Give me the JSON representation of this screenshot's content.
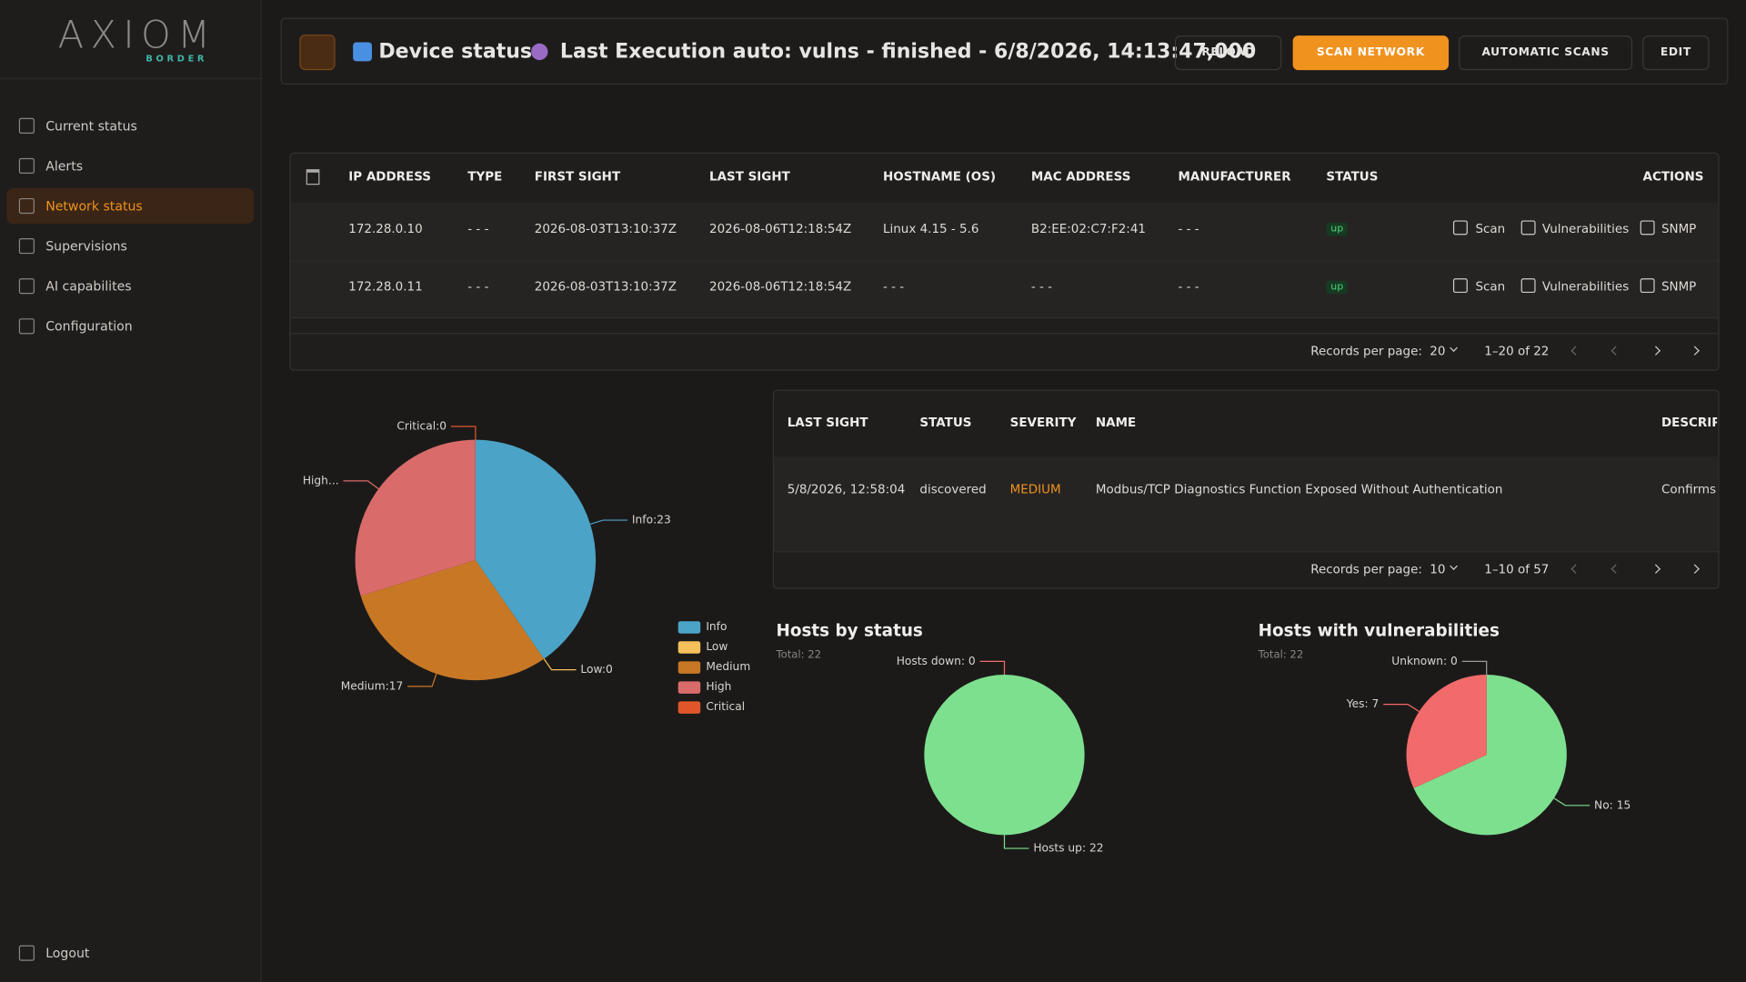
{
  "sidebar": {
    "logo": "AXIOM",
    "logo_sub": "BORDER",
    "menu": [
      "Current status",
      "Alerts",
      "Network status",
      "Supervisions",
      "AI capabilites",
      "Configuration"
    ],
    "logout": "Logout"
  },
  "header": {
    "title": "Device status -",
    "execution": "Last Execution auto: vulns - finished - 6/8/2026, 14:13:47,000",
    "buttons": [
      "RELOAD",
      "SCAN NETWORK",
      "AUTOMATIC SCANS",
      "EDIT"
    ]
  },
  "devices_table": {
    "columns": [
      "IP ADDRESS",
      "TYPE",
      "FIRST SIGHT",
      "LAST SIGHT",
      "HOSTNAME (OS)",
      "MAC ADDRESS",
      "MANUFACTURER",
      "STATUS",
      "ACTIONS"
    ],
    "rows": [
      [
        "172.28.0.10",
        "- - -",
        "2026-08-03T13:10:37Z",
        "2026-08-06T12:18:54Z",
        "Linux 4.15 - 5.6",
        "B2:EE:02:C7:F2:41",
        "- - -",
        "up"
      ],
      [
        "172.28.0.11",
        "- - -",
        "2026-08-03T13:10:37Z",
        "2026-08-06T12:18:54Z",
        "- - -",
        "- - -",
        "- - -",
        "up"
      ]
    ],
    "actions": [
      "Scan",
      "Vulnerabilities",
      "SNMP"
    ],
    "records_label": "Records per page:",
    "per_page": "20",
    "range": "1–20 of 22"
  },
  "vulns_table": {
    "columns": [
      "LAST SIGHT",
      "STATUS",
      "SEVERITY",
      "NAME",
      "DESCRIPTION"
    ],
    "rows": [
      [
        "5/8/2026, 12:58:04",
        "discovered",
        "MEDIUM",
        "Modbus/TCP Diagnostics Function Exposed Without Authentication",
        "Confirms a"
      ]
    ],
    "records_label": "Records per page:",
    "per_page": "10",
    "range": "1–10 of 57"
  },
  "chart_data": [
    {
      "type": "pie",
      "categories": [
        "Info",
        "Low",
        "Medium",
        "High",
        "Critical"
      ],
      "values": [
        23,
        0,
        17,
        17,
        0
      ],
      "value_labels": [
        "Info:23",
        "Low:0",
        "Medium:17",
        "High...",
        "Critical:0"
      ],
      "colors": [
        "#4ba3c7",
        "#f5c15a",
        "#c87825",
        "#d96b6b",
        "#e0562a"
      ],
      "legend": "right"
    },
    {
      "type": "pie",
      "title": "Hosts by status",
      "subtitle": "Total: 22",
      "categories": [
        "Hosts up",
        "Hosts down"
      ],
      "values": [
        22,
        0
      ],
      "value_labels": [
        "Hosts up: 22",
        "Hosts down: 0"
      ],
      "colors": [
        "#7de08f",
        "#f26b6b"
      ]
    },
    {
      "type": "pie",
      "title": "Hosts with vulnerabilities",
      "subtitle": "Total: 22",
      "categories": [
        "No",
        "Yes",
        "Unknown"
      ],
      "values": [
        15,
        7,
        0
      ],
      "value_labels": [
        "No: 15",
        "Yes: 7",
        "Unknown: 0"
      ],
      "colors": [
        "#7de08f",
        "#f26b6b",
        "#9a9a9a"
      ]
    }
  ]
}
